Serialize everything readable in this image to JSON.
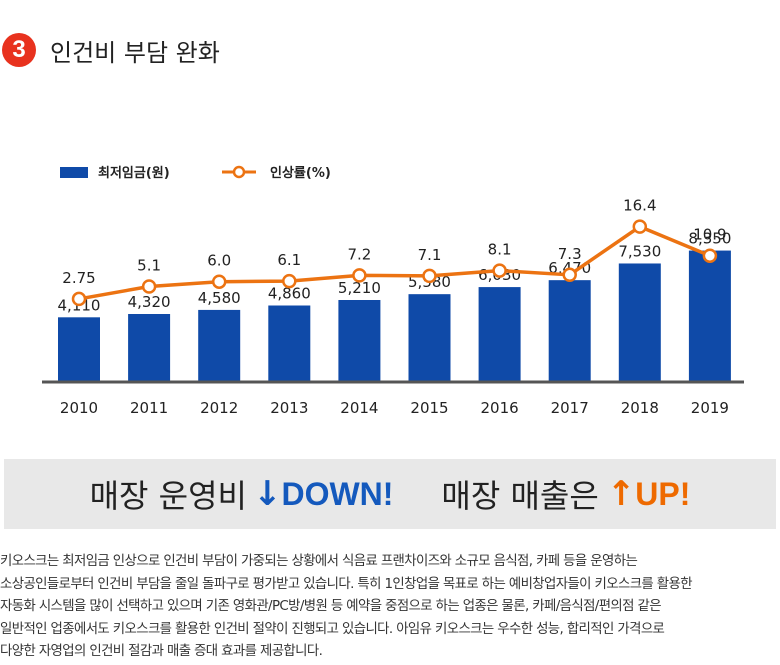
{
  "header": {
    "badge": "3",
    "title": "인건비 부담 완화"
  },
  "chart_data": {
    "type": "bar",
    "categories": [
      "2010",
      "2011",
      "2012",
      "2013",
      "2014",
      "2015",
      "2016",
      "2017",
      "2018",
      "2019"
    ],
    "series": [
      {
        "name": "최저임금(원)",
        "type": "bar",
        "color": "#0f4aa8",
        "values": [
          4110,
          4320,
          4580,
          4860,
          5210,
          5580,
          6030,
          6470,
          7530,
          8350
        ],
        "labels": [
          "4,110",
          "4,320",
          "4,580",
          "4,860",
          "5,210",
          "5,580",
          "6,030",
          "6,470",
          "7,530",
          "8,350"
        ]
      },
      {
        "name": "인상률(%)",
        "type": "line",
        "color": "#ec7312",
        "values": [
          2.75,
          5.1,
          6.0,
          6.1,
          7.2,
          7.1,
          8.1,
          7.3,
          16.4,
          10.9
        ],
        "labels": [
          "2.75",
          "5.1",
          "6.0",
          "6.1",
          "7.2",
          "7.1",
          "8.1",
          "7.3",
          "16.4",
          "10.9"
        ]
      }
    ],
    "legend_position": "top-left",
    "grid": false
  },
  "banner": {
    "left_text": "매장 운영비",
    "left_arrow": "↓",
    "left_word": "DOWN!",
    "right_text": "매장 매출은",
    "right_arrow": "↑",
    "right_word": "UP!"
  },
  "body_lines": [
    "키오스크는 최저임금 인상으로 인건비 부담이 가중되는 상황에서 식음료 프랜차이즈와 소규모 음식점, 카페 등을 운영하는",
    "소상공인들로부터 인건비 부담을 줄일 돌파구로 평가받고 있습니다. 특히 1인창업을 목표로 하는 예비창업자들이 키오스크를 활용한",
    "자동화 시스템을 많이 선택하고 있으며 기존 영화관/PC방/병원 등 예약을 중점으로 하는 업종은 물론, 카페/음식점/편의점 같은",
    "일반적인 업종에서도 키오스크를 활용한 인건비 절약이 진행되고 있습니다. 아임유 키오스크는 우수한 성능, 합리적인 가격으로",
    "다양한 자영업의 인건비 절감과 매출 증대 효과를 제공합니다."
  ]
}
